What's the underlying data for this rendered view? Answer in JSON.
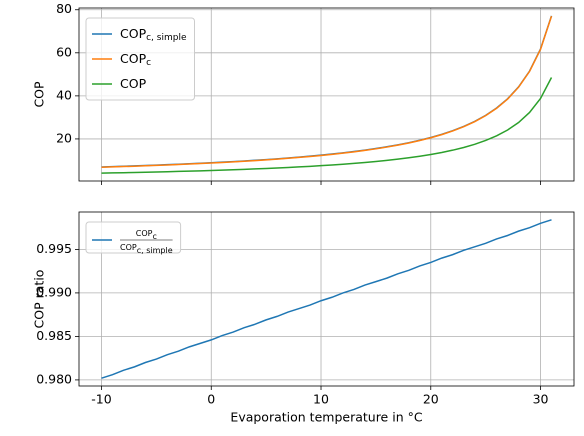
{
  "chart_data": [
    {
      "type": "line",
      "ylabel": "COP",
      "x": [
        -10,
        -9,
        -8,
        -7,
        -6,
        -5,
        -4,
        -3,
        -2,
        -1,
        0,
        1,
        2,
        3,
        4,
        5,
        6,
        7,
        8,
        9,
        10,
        11,
        12,
        13,
        14,
        15,
        16,
        17,
        18,
        19,
        20,
        21,
        22,
        23,
        24,
        25,
        26,
        27,
        28,
        29,
        30,
        31
      ],
      "series": [
        {
          "name": "COP",
          "name_sub": "c, simple",
          "color": "#1f77b4",
          "values": [
            6.986,
            7.141,
            7.304,
            7.475,
            7.654,
            7.842,
            8.039,
            8.247,
            8.465,
            8.697,
            8.941,
            9.2,
            9.475,
            9.767,
            10.077,
            10.409,
            10.763,
            11.141,
            11.549,
            11.988,
            12.462,
            12.976,
            13.534,
            14.143,
            14.809,
            15.543,
            16.353,
            17.254,
            18.26,
            19.393,
            20.677,
            22.145,
            23.837,
            25.812,
            28.146,
            30.947,
            34.37,
            38.649,
            44.15,
            51.486,
            61.756,
            77.161
          ]
        },
        {
          "name": "COP",
          "name_sub": "c",
          "color": "#ff7f0e",
          "values": [
            6.848,
            7.003,
            7.166,
            7.337,
            7.516,
            7.704,
            7.901,
            8.109,
            8.328,
            8.56,
            8.804,
            9.063,
            9.338,
            9.63,
            9.94,
            10.272,
            10.626,
            11.005,
            11.413,
            11.852,
            12.326,
            12.84,
            13.398,
            14.007,
            14.674,
            15.408,
            16.218,
            17.119,
            18.126,
            19.259,
            20.543,
            22.011,
            23.704,
            25.679,
            28.014,
            30.815,
            34.239,
            38.519,
            44.021,
            51.358,
            61.63,
            77.038
          ]
        },
        {
          "name": "COP",
          "color": "#2ca02c",
          "values": [
            4.11,
            4.21,
            4.31,
            4.42,
            4.53,
            4.65,
            4.78,
            4.91,
            5.05,
            5.19,
            5.35,
            5.51,
            5.68,
            5.87,
            6.07,
            6.28,
            6.5,
            6.74,
            7.0,
            7.28,
            7.58,
            7.9,
            8.25,
            8.64,
            9.06,
            9.53,
            10.04,
            10.61,
            11.25,
            11.96,
            12.78,
            13.7,
            14.78,
            16.03,
            17.5,
            19.28,
            21.44,
            24.15,
            27.63,
            32.28,
            38.78,
            48.53
          ]
        }
      ],
      "xlim": [
        -12.05,
        33.05
      ],
      "xticks": [
        -10,
        0,
        10,
        20,
        30
      ],
      "xticklabels": false,
      "ylim": [
        0.46,
        80.81
      ],
      "yticks": [
        20,
        40,
        60,
        80
      ],
      "grid": true,
      "legend": "upper left"
    },
    {
      "type": "line",
      "xlabel": "Evaporation temperature in °C",
      "ylabel": "COP ratio",
      "x": [
        -10,
        -9,
        -8,
        -7,
        -6,
        -5,
        -4,
        -3,
        -2,
        -1,
        0,
        1,
        2,
        3,
        4,
        5,
        6,
        7,
        8,
        9,
        10,
        11,
        12,
        13,
        14,
        15,
        16,
        17,
        18,
        19,
        20,
        21,
        22,
        23,
        24,
        25,
        26,
        27,
        28,
        29,
        30,
        31
      ],
      "series": [
        {
          "name": "COP",
          "name_sub": "c",
          "denominator": "COP",
          "denominator_sub": "c, simple",
          "color": "#1f77b4",
          "values": [
            0.9802,
            0.9806,
            0.9811,
            0.9815,
            0.982,
            0.9824,
            0.9829,
            0.9833,
            0.9838,
            0.9842,
            0.9846,
            0.9851,
            0.9855,
            0.986,
            0.9864,
            0.9869,
            0.9873,
            0.9878,
            0.9882,
            0.9886,
            0.9891,
            0.9895,
            0.99,
            0.9904,
            0.9909,
            0.9913,
            0.9917,
            0.9922,
            0.9926,
            0.9931,
            0.9935,
            0.994,
            0.9944,
            0.9949,
            0.9953,
            0.9957,
            0.9962,
            0.9966,
            0.9971,
            0.9975,
            0.998,
            0.9984
          ]
        }
      ],
      "xlim": [
        -12.05,
        33.05
      ],
      "xticks": [
        -10,
        0,
        10,
        20,
        30
      ],
      "ylim": [
        0.9793,
        0.9993
      ],
      "yticks": [
        {
          "value": 0.98,
          "label": "0.980"
        },
        {
          "value": 0.985,
          "label": "0.985"
        },
        {
          "value": 0.99,
          "label": "0.990"
        },
        {
          "value": 0.995,
          "label": "0.995"
        }
      ],
      "grid": true,
      "legend": "upper left"
    }
  ]
}
